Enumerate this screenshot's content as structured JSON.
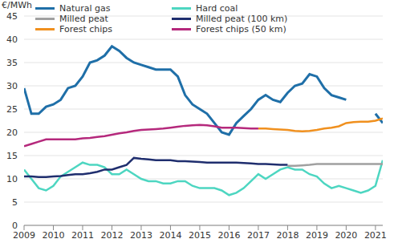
{
  "chart_data": {
    "type": "line",
    "y_label": "€/MWh",
    "x": [
      2009,
      2009.25,
      2009.5,
      2009.75,
      2010,
      2010.25,
      2010.5,
      2010.75,
      2011,
      2011.25,
      2011.5,
      2011.75,
      2012,
      2012.25,
      2012.5,
      2012.75,
      2013,
      2013.25,
      2013.5,
      2013.75,
      2014,
      2014.25,
      2014.5,
      2014.75,
      2015,
      2015.25,
      2015.5,
      2015.75,
      2016,
      2016.25,
      2016.5,
      2016.75,
      2017,
      2017.25,
      2017.5,
      2017.75,
      2018,
      2018.25,
      2018.5,
      2018.75,
      2019,
      2019.25,
      2019.5,
      2019.75,
      2020,
      2020.25,
      2020.5,
      2020.75,
      2021,
      2021.25
    ],
    "xlim": [
      2009,
      2021.25
    ],
    "xticks": [
      2009,
      2010,
      2011,
      2012,
      2013,
      2014,
      2015,
      2016,
      2017,
      2018,
      2019,
      2020,
      2021
    ],
    "ylim": [
      0,
      45
    ],
    "yticks": [
      0,
      5,
      10,
      15,
      20,
      25,
      30,
      35,
      40,
      45
    ],
    "grid": true,
    "legend": "top",
    "series": [
      {
        "name": "Natural gas",
        "color": "#1f6fa8",
        "values": [
          29.5,
          24,
          24,
          25.5,
          26,
          27,
          29.5,
          30,
          32,
          35,
          35.5,
          36.5,
          38.5,
          37.5,
          36,
          35,
          34.5,
          34,
          33.5,
          33.5,
          33.5,
          32,
          28,
          26,
          25,
          24,
          22,
          20,
          19.5,
          22,
          23.5,
          25,
          27,
          28,
          27,
          26.5,
          28.5,
          30,
          30.5,
          32.5,
          32,
          29.5,
          28,
          27.5,
          27,
          null,
          null,
          null,
          24,
          22
        ]
      },
      {
        "name": "Hard coal",
        "color": "#4dd6c1",
        "values": [
          12,
          10,
          8,
          7.5,
          8.5,
          10.5,
          11.5,
          12.5,
          13.5,
          13,
          13,
          12.5,
          11,
          11,
          12,
          11,
          10,
          9.5,
          9.5,
          9,
          9,
          9.5,
          9.5,
          8.5,
          8,
          8,
          8,
          7.5,
          6.5,
          7,
          8,
          9.5,
          11,
          10,
          11,
          12,
          12.5,
          12,
          12,
          11,
          10.5,
          9,
          8,
          8.5,
          8,
          7.5,
          7,
          7.5,
          8.5,
          14
        ]
      },
      {
        "name": "Milled peat",
        "color": "#a0a0a0",
        "values": [
          null,
          null,
          null,
          null,
          null,
          null,
          null,
          null,
          null,
          null,
          null,
          null,
          null,
          null,
          null,
          null,
          null,
          null,
          null,
          null,
          null,
          null,
          null,
          null,
          null,
          null,
          null,
          null,
          null,
          null,
          null,
          null,
          null,
          null,
          null,
          null,
          12.8,
          12.8,
          12.9,
          13,
          13.2,
          13.2,
          13.2,
          13.2,
          13.2,
          13.2,
          13.2,
          13.2,
          13.2,
          13.2
        ]
      },
      {
        "name": "Milled peat (100 km)",
        "color": "#1f2e6e",
        "values": [
          10.5,
          10.5,
          10.4,
          10.4,
          10.5,
          10.6,
          10.8,
          11,
          11,
          11.2,
          11.5,
          12,
          12,
          12.5,
          13,
          14.5,
          14.3,
          14.2,
          14,
          14,
          14,
          13.8,
          13.8,
          13.7,
          13.6,
          13.5,
          13.5,
          13.5,
          13.5,
          13.5,
          13.4,
          13.3,
          13.2,
          13.2,
          13.1,
          13,
          13,
          null,
          null,
          null,
          null,
          null,
          null,
          null,
          null,
          null,
          null,
          null,
          null,
          null
        ]
      },
      {
        "name": "Forest chips",
        "color": "#f0901e",
        "values": [
          null,
          null,
          null,
          null,
          null,
          null,
          null,
          null,
          null,
          null,
          null,
          null,
          null,
          null,
          null,
          null,
          null,
          null,
          null,
          null,
          null,
          null,
          null,
          null,
          null,
          null,
          null,
          null,
          null,
          null,
          null,
          null,
          20.8,
          20.8,
          20.7,
          20.6,
          20.5,
          20.3,
          20.2,
          20.3,
          20.5,
          20.8,
          21,
          21.3,
          22,
          22.2,
          22.3,
          22.3,
          22.5,
          23
        ]
      },
      {
        "name": "Forest chips (50 km)",
        "color": "#b5297c",
        "values": [
          17,
          17.5,
          18,
          18.5,
          18.5,
          18.5,
          18.5,
          18.5,
          18.7,
          18.8,
          19,
          19.2,
          19.5,
          19.8,
          20,
          20.3,
          20.5,
          20.6,
          20.7,
          20.8,
          21,
          21.2,
          21.4,
          21.5,
          21.6,
          21.5,
          21.3,
          21,
          21,
          21,
          20.9,
          20.8,
          20.8,
          null,
          null,
          null,
          null,
          null,
          null,
          null,
          null,
          null,
          null,
          null,
          null,
          null,
          null,
          null,
          null,
          null
        ]
      }
    ]
  }
}
